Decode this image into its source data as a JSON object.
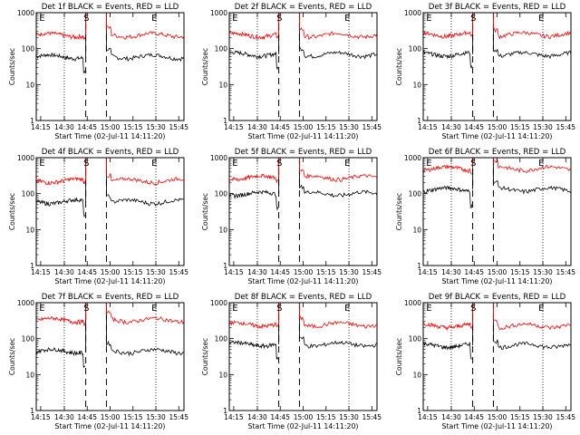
{
  "figure": {
    "ylabel": "Counts/sec",
    "xlabel": "Start Time (02-Jul-11 14:11:20)",
    "y_ticks": [
      "1",
      "10",
      "100",
      "1000"
    ],
    "x_ticks": [
      "14:15",
      "14:30",
      "14:45",
      "15:00",
      "15:15",
      "15:30",
      "15:45"
    ],
    "colors": {
      "events": "#000000",
      "lld": "#ff0000"
    }
  },
  "chart_data": [
    {
      "type": "line",
      "title": "Det 1f BLACK = Events, RED = LLD",
      "markers": [
        "E",
        "S",
        "E"
      ],
      "ylim": [
        1,
        1000
      ],
      "yscale": "log",
      "xlim": [
        "14:11:20",
        "15:50:00"
      ],
      "series": [
        {
          "name": "Events",
          "color": "#000000",
          "level": 60
        },
        {
          "name": "LLD",
          "color": "#ff0000",
          "level": 240
        }
      ]
    },
    {
      "type": "line",
      "title": "Det 2f BLACK = Events, RED = LLD",
      "markers": [
        "E",
        "S",
        "E"
      ],
      "ylim": [
        1,
        1000
      ],
      "yscale": "log",
      "xlim": [
        "14:11:20",
        "15:50:00"
      ],
      "series": [
        {
          "name": "Events",
          "color": "#000000",
          "level": 70
        },
        {
          "name": "LLD",
          "color": "#ff0000",
          "level": 240
        }
      ]
    },
    {
      "type": "line",
      "title": "Det 3f BLACK = Events, RED = LLD",
      "markers": [
        "E",
        "S",
        "E"
      ],
      "ylim": [
        1,
        1000
      ],
      "yscale": "log",
      "xlim": [
        "14:11:20",
        "15:50:00"
      ],
      "series": [
        {
          "name": "Events",
          "color": "#000000",
          "level": 70
        },
        {
          "name": "LLD",
          "color": "#ff0000",
          "level": 250
        }
      ]
    },
    {
      "type": "line",
      "title": "Det 4f BLACK = Events, RED = LLD",
      "markers": [
        "E",
        "S",
        "E"
      ],
      "ylim": [
        1,
        1000
      ],
      "yscale": "log",
      "xlim": [
        "14:11:20",
        "15:50:00"
      ],
      "series": [
        {
          "name": "Events",
          "color": "#000000",
          "level": 60
        },
        {
          "name": "LLD",
          "color": "#ff0000",
          "level": 230
        }
      ]
    },
    {
      "type": "line",
      "title": "Det 5f BLACK = Events, RED = LLD",
      "markers": [
        "E",
        "S",
        "E"
      ],
      "ylim": [
        1,
        1000
      ],
      "yscale": "log",
      "xlim": [
        "14:11:20",
        "15:50:00"
      ],
      "series": [
        {
          "name": "Events",
          "color": "#000000",
          "level": 100
        },
        {
          "name": "LLD",
          "color": "#ff0000",
          "level": 280
        }
      ]
    },
    {
      "type": "line",
      "title": "Det 6f BLACK = Events, RED = LLD",
      "markers": [
        "E",
        "S",
        "E"
      ],
      "ylim": [
        1,
        1000
      ],
      "yscale": "log",
      "xlim": [
        "14:11:20",
        "15:50:00"
      ],
      "series": [
        {
          "name": "Events",
          "color": "#000000",
          "level": 130
        },
        {
          "name": "LLD",
          "color": "#ff0000",
          "level": 500
        }
      ]
    },
    {
      "type": "line",
      "title": "Det 7f BLACK = Events, RED = LLD",
      "markers": [
        "E",
        "S",
        "E"
      ],
      "ylim": [
        1,
        1000
      ],
      "yscale": "log",
      "xlim": [
        "14:11:20",
        "15:50:00"
      ],
      "series": [
        {
          "name": "Events",
          "color": "#000000",
          "level": 45
        },
        {
          "name": "LLD",
          "color": "#ff0000",
          "level": 330
        }
      ]
    },
    {
      "type": "line",
      "title": "Det 8f BLACK = Events, RED = LLD",
      "markers": [
        "E",
        "S",
        "E"
      ],
      "ylim": [
        1,
        1000
      ],
      "yscale": "log",
      "xlim": [
        "14:11:20",
        "15:50:00"
      ],
      "series": [
        {
          "name": "Events",
          "color": "#000000",
          "level": 70
        },
        {
          "name": "LLD",
          "color": "#ff0000",
          "level": 250
        }
      ]
    },
    {
      "type": "line",
      "title": "Det 9f BLACK = Events, RED = LLD",
      "markers": [
        "E",
        "S",
        "E"
      ],
      "ylim": [
        1,
        1000
      ],
      "yscale": "log",
      "xlim": [
        "14:11:20",
        "15:50:00"
      ],
      "series": [
        {
          "name": "Events",
          "color": "#000000",
          "level": 65
        },
        {
          "name": "LLD",
          "color": "#ff0000",
          "level": 230
        }
      ]
    }
  ]
}
